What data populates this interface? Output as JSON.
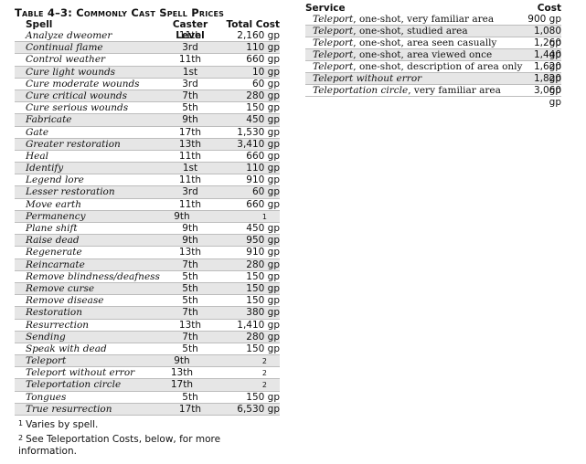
{
  "spell_table": {
    "title": "Table 4–3: Commonly Cast Spell Prices",
    "headers": {
      "spell": "Spell",
      "caster_level": "Caster Level",
      "total_cost": "Total Cost"
    },
    "rows": [
      {
        "spell": "Analyze dweomer",
        "level": "11th",
        "cost": "2,160 gp"
      },
      {
        "spell": "Continual flame",
        "level": "3rd",
        "cost": "110 gp"
      },
      {
        "spell": "Control weather",
        "level": "11th",
        "cost": "660 gp"
      },
      {
        "spell": "Cure light wounds",
        "level": "1st",
        "cost": "10 gp"
      },
      {
        "spell": "Cure moderate wounds",
        "level": "3rd",
        "cost": "60 gp"
      },
      {
        "spell": "Cure critical wounds",
        "level": "7th",
        "cost": "280 gp"
      },
      {
        "spell": "Cure serious wounds",
        "level": "5th",
        "cost": "150 gp"
      },
      {
        "spell": "Fabricate",
        "level": "9th",
        "cost": "450 gp"
      },
      {
        "spell": "Gate",
        "level": "17th",
        "cost": "1,530 gp"
      },
      {
        "spell": "Greater restoration",
        "level": "13th",
        "cost": "3,410 gp"
      },
      {
        "spell": "Heal",
        "level": "11th",
        "cost": "660 gp"
      },
      {
        "spell": "Identify",
        "level": "1st",
        "cost": "110 gp"
      },
      {
        "spell": "Legend lore",
        "level": "11th",
        "cost": "910 gp"
      },
      {
        "spell": "Lesser restoration",
        "level": "3rd",
        "cost": "60 gp"
      },
      {
        "spell": "Move earth",
        "level": "11th",
        "cost": "660 gp"
      },
      {
        "spell": "Permanency",
        "level": "9th",
        "cost": "1"
      },
      {
        "spell": "Plane shift",
        "level": "9th",
        "cost": "450 gp"
      },
      {
        "spell": "Raise dead",
        "level": "9th",
        "cost": "950 gp"
      },
      {
        "spell": "Regenerate",
        "level": "13th",
        "cost": "910 gp"
      },
      {
        "spell": "Reincarnate",
        "level": "7th",
        "cost": "280 gp"
      },
      {
        "spell": "Remove blindness/deafness",
        "level": "5th",
        "cost": "150 gp"
      },
      {
        "spell": "Remove curse",
        "level": "5th",
        "cost": "150 gp"
      },
      {
        "spell": "Remove disease",
        "level": "5th",
        "cost": "150 gp"
      },
      {
        "spell": "Restoration",
        "level": "7th",
        "cost": "380 gp"
      },
      {
        "spell": "Resurrection",
        "level": "13th",
        "cost": "1,410 gp"
      },
      {
        "spell": "Sending",
        "level": "7th",
        "cost": "280 gp"
      },
      {
        "spell": "Speak with dead",
        "level": "5th",
        "cost": "150 gp"
      },
      {
        "spell": "Teleport",
        "level": "9th",
        "cost": "2"
      },
      {
        "spell": "Teleport without error",
        "level": "13th",
        "cost": "2"
      },
      {
        "spell": "Teleportation circle",
        "level": "17th",
        "cost": "2"
      },
      {
        "spell": "Tongues",
        "level": "5th",
        "cost": "150 gp"
      },
      {
        "spell": "True resurrection",
        "level": "17th",
        "cost": "6,530 gp"
      }
    ],
    "footnotes": [
      {
        "num": "1",
        "text": "Varies by spell."
      },
      {
        "num": "2",
        "text": "See Teleportation Costs, below, for more information."
      }
    ]
  },
  "teleport_table": {
    "headers": {
      "service": "Service",
      "cost": "Cost"
    },
    "rows": [
      {
        "spell": "Teleport",
        "rest": ", one-shot, very familiar area",
        "cost": "900 gp"
      },
      {
        "spell": "Teleport",
        "rest": ", one-shot, studied area",
        "cost": "1,080 gp"
      },
      {
        "spell": "Teleport",
        "rest": ", one-shot, area seen casually",
        "cost": "1,260 gp"
      },
      {
        "spell": "Teleport",
        "rest": ", one-shot, area viewed once",
        "cost": "1,440 gp"
      },
      {
        "spell": "Teleport",
        "rest": ", one-shot, description of area only",
        "cost": "1,620 gp"
      },
      {
        "spell": "Teleport without error",
        "rest": "",
        "cost": "1,820 gp"
      },
      {
        "spell": "Teleportation circle",
        "rest": ", very familiar area",
        "cost": "3,060 gp"
      }
    ]
  },
  "colors": {
    "shade": "#e6e6e6",
    "rule": "#bdbdbd"
  }
}
